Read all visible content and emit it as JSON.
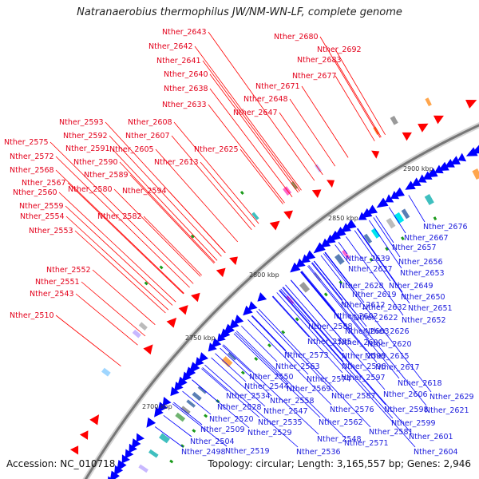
{
  "title": "Natranaerobius thermophilus JW/NM-WN-LF, complete genome",
  "accession_text": "Accession: NC_010718",
  "stats_text": "Topology: circular; Length: 3,165,557 bp; Genes: 2,946",
  "colors": {
    "forward_gene": "#ff0000",
    "reverse_gene": "#0000ff",
    "forward_label": "#e3001b",
    "reverse_label": "#1a1adb",
    "backbone": "#777777"
  },
  "ticks": [
    "2700 kbp",
    "2750 kbp",
    "2800 kbp",
    "2850 kbp",
    "2900 kbp"
  ],
  "forward_labels": [
    "Nther_2643",
    "Nther_2642",
    "Nther_2641",
    "Nther_2640",
    "Nther_2638",
    "Nther_2633",
    "Nther_2648",
    "Nther_2647",
    "Nther_2680",
    "Nther_2692",
    "Nther_2683",
    "Nther_2677",
    "Nther_2671",
    "Nther_2608",
    "Nther_2607",
    "Nther_2605",
    "Nther_2625",
    "Nther_2613",
    "Nther_2593",
    "Nther_2592",
    "Nther_2591",
    "Nther_2590",
    "Nther_2589",
    "Nther_2580",
    "Nther_2594",
    "Nther_2582",
    "Nther_2575",
    "Nther_2572",
    "Nther_2568",
    "Nther_2567",
    "Nther_2560",
    "Nther_2559",
    "Nther_2554",
    "Nther_2553",
    "Nther_2552",
    "Nther_2551",
    "Nther_2543",
    "Nther_2510"
  ],
  "reverse_labels": [
    "Nther_2676",
    "Nther_2667",
    "Nther_2657",
    "Nther_2639",
    "Nther_2656",
    "Nther_2637",
    "Nther_2653",
    "Nther_2628",
    "Nther_2649",
    "Nther_2619",
    "Nther_2650",
    "Nther_2612",
    "Nther_2632",
    "Nther_2651",
    "Nther_2602",
    "Nther_2622",
    "Nther_2652",
    "Nther_2588",
    "Nther_2603",
    "Nther_2626",
    "Nther_2585",
    "Nther_2600",
    "Nther_2620",
    "Nther_2573",
    "Nther_2595",
    "Nther_2615",
    "Nther_2563",
    "Nther_2596",
    "Nther_2617",
    "Nther_2550",
    "Nther_2574",
    "Nther_2597",
    "Nther_2544",
    "Nther_2569",
    "Nther_2618",
    "Nther_2534",
    "Nther_2558",
    "Nther_2587",
    "Nther_2606",
    "Nther_2629",
    "Nther_2528",
    "Nther_2547",
    "Nther_2576",
    "Nther_2598",
    "Nther_2621",
    "Nther_2520",
    "Nther_2535",
    "Nther_2562",
    "Nther_2599",
    "Nther_2509",
    "Nther_2529",
    "Nther_2581",
    "Nther_2504",
    "Nther_2548",
    "Nther_2571",
    "Nther_2601",
    "Nther_2498",
    "Nther_2519",
    "Nther_2536",
    "Nther_2604"
  ]
}
